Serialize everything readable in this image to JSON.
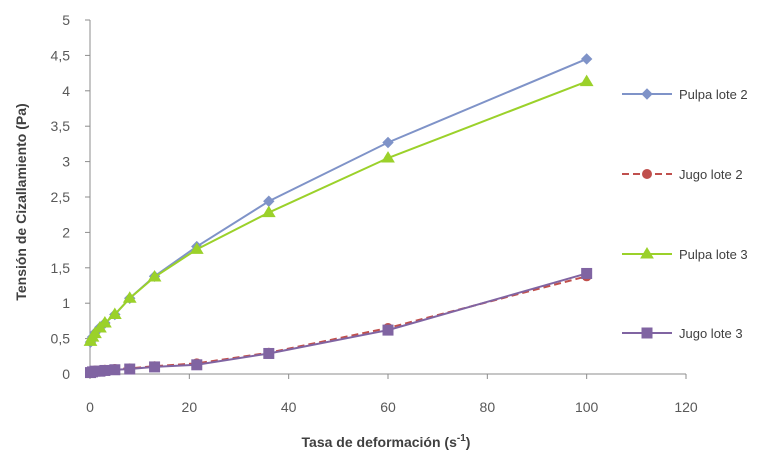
{
  "chart_data": {
    "type": "line",
    "title": "",
    "xlabel_main": "Tasa de deformación (s",
    "xlabel_sup": "-1",
    "xlabel_end": ")",
    "ylabel": "Tensión de Cizallamiento (Pa)",
    "xlim": [
      0,
      120
    ],
    "ylim": [
      0,
      5
    ],
    "x_ticks": [
      "0",
      "20",
      "40",
      "60",
      "80",
      "100",
      "120"
    ],
    "y_ticks": [
      "0",
      "0,5",
      "1",
      "1,5",
      "2",
      "2,5",
      "3",
      "3,5",
      "4",
      "4,5",
      "5"
    ],
    "grid": false,
    "legend_position": "right",
    "series": [
      {
        "name": "Pulpa lote 2",
        "color": "#7f93c8",
        "marker": "diamond",
        "dash": "solid",
        "x": [
          0.1,
          0.5,
          1,
          2,
          3,
          5,
          8,
          13,
          21.5,
          36,
          60,
          100
        ],
        "y": [
          0.45,
          0.52,
          0.58,
          0.66,
          0.72,
          0.84,
          1.07,
          1.38,
          1.8,
          2.44,
          3.27,
          4.45
        ]
      },
      {
        "name": "Jugo lote 2",
        "color": "#c0504d",
        "marker": "circle",
        "dash": "dashed",
        "x": [
          0.1,
          0.5,
          1,
          2,
          3,
          5,
          8,
          13,
          21.5,
          36,
          60,
          100
        ],
        "y": [
          0.03,
          0.04,
          0.05,
          0.05,
          0.06,
          0.07,
          0.08,
          0.11,
          0.15,
          0.3,
          0.65,
          1.38
        ]
      },
      {
        "name": "Pulpa lote 3",
        "color": "#9bd12a",
        "marker": "triangle",
        "dash": "solid",
        "x": [
          0.1,
          0.5,
          1,
          2,
          3,
          5,
          8,
          13,
          21.5,
          36,
          60,
          100
        ],
        "y": [
          0.46,
          0.52,
          0.57,
          0.65,
          0.72,
          0.84,
          1.07,
          1.37,
          1.76,
          2.28,
          3.05,
          4.13
        ]
      },
      {
        "name": "Jugo lote 3",
        "color": "#8064a2",
        "marker": "square",
        "dash": "solid",
        "x": [
          0.1,
          0.5,
          1,
          2,
          3,
          5,
          8,
          13,
          21.5,
          36,
          60,
          100
        ],
        "y": [
          0.02,
          0.03,
          0.04,
          0.04,
          0.05,
          0.06,
          0.07,
          0.1,
          0.13,
          0.29,
          0.62,
          1.42
        ]
      }
    ]
  }
}
